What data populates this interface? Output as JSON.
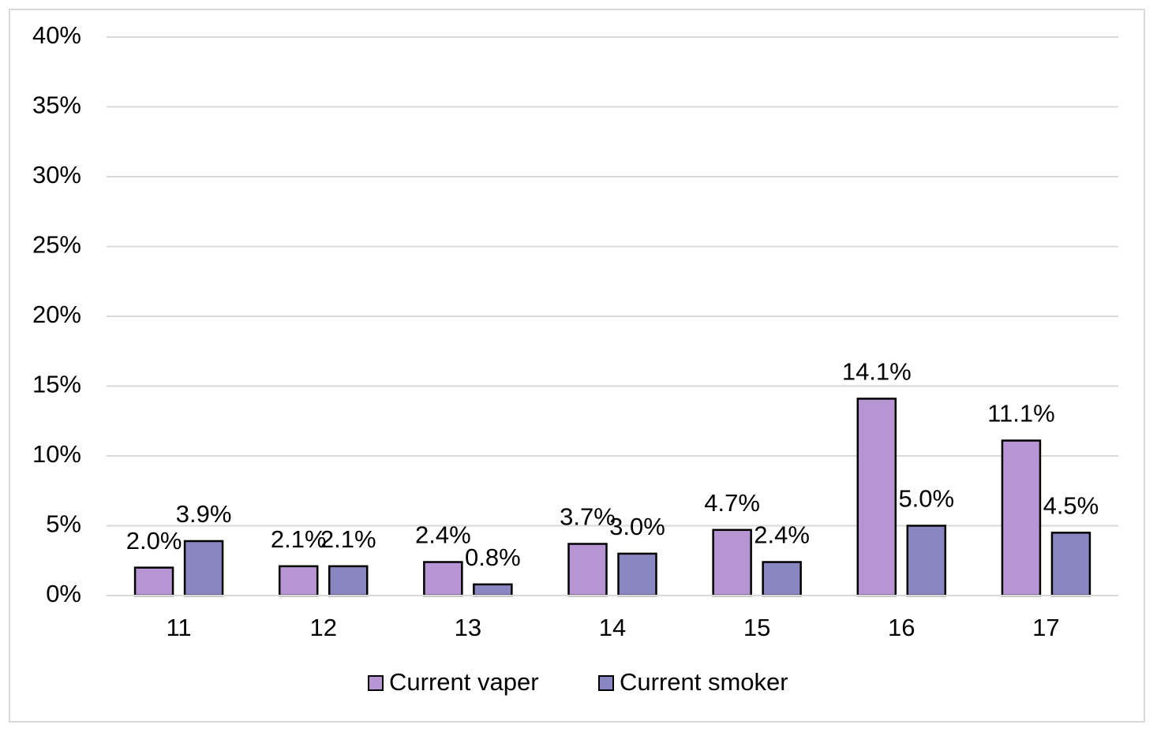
{
  "chart_data": {
    "type": "bar",
    "categories": [
      "11",
      "12",
      "13",
      "14",
      "15",
      "16",
      "17"
    ],
    "series": [
      {
        "name": "Current vaper",
        "color": "#b795d3",
        "values": [
          2.0,
          2.1,
          2.4,
          3.7,
          4.7,
          14.1,
          11.1
        ],
        "value_labels": [
          "2.0%",
          "2.1%",
          "2.4%",
          "3.7%",
          "4.7%",
          "14.1%",
          "11.1%"
        ]
      },
      {
        "name": "Current smoker",
        "color": "#8a86c2",
        "values": [
          3.9,
          2.1,
          0.8,
          3.0,
          2.4,
          5.0,
          4.5
        ],
        "value_labels": [
          "3.9%",
          "2.1%",
          "0.8%",
          "3.0%",
          "2.4%",
          "5.0%",
          "4.5%"
        ]
      }
    ],
    "ylim": [
      0,
      40
    ],
    "yticks": [
      {
        "value": 0,
        "label": "0%"
      },
      {
        "value": 5,
        "label": "5%"
      },
      {
        "value": 10,
        "label": "10%"
      },
      {
        "value": 15,
        "label": "15%"
      },
      {
        "value": 20,
        "label": "20%"
      },
      {
        "value": 25,
        "label": "25%"
      },
      {
        "value": 30,
        "label": "30%"
      },
      {
        "value": 35,
        "label": "35%"
      },
      {
        "value": 40,
        "label": "40%"
      }
    ],
    "grid": true,
    "legend": "bottom"
  }
}
